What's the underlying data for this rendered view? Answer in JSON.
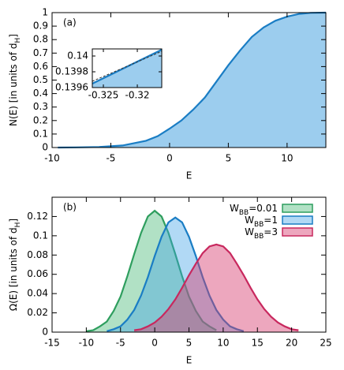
{
  "chart_data": [
    {
      "type": "area",
      "annotation": "(a)",
      "xlabel": "E",
      "ylabel": [
        "N(E) [in units of d",
        "H",
        "]"
      ],
      "xlim": [
        -10,
        13.3
      ],
      "xticks": [
        -10,
        -5,
        0,
        5,
        10
      ],
      "ylim": [
        0,
        1
      ],
      "yticks": [
        0,
        0.1,
        0.2,
        0.3,
        0.4,
        0.5,
        0.6,
        0.7,
        0.8,
        0.9,
        1
      ],
      "series": [
        {
          "color": "#1a7dc4",
          "fill": "#9ccdee",
          "x": [
            -9.5,
            -8,
            -6,
            -4,
            -2,
            -1,
            0,
            1,
            2,
            3,
            4,
            5,
            6,
            7,
            8,
            9,
            10,
            11,
            12,
            13.3
          ],
          "values": [
            0,
            0.001,
            0.004,
            0.015,
            0.05,
            0.085,
            0.14,
            0.2,
            0.28,
            0.37,
            0.49,
            0.61,
            0.72,
            0.82,
            0.89,
            0.94,
            0.97,
            0.99,
            0.998,
            1
          ]
        }
      ]
    },
    {
      "type": "area",
      "xlim": [
        -0.32663,
        -0.3164
      ],
      "xticks": [
        -0.325,
        -0.32
      ],
      "ylim": [
        0.1396,
        0.14009
      ],
      "yticks": [
        0.1396,
        0.1398,
        0.14
      ],
      "series": [
        {
          "color": "#1a7dc4",
          "fill": "#9ccdee",
          "x": [
            -0.32663,
            -0.3164
          ],
          "values": [
            0.13965,
            0.14008
          ]
        },
        {
          "color": "#333333",
          "dashed": true,
          "x": [
            -0.32663,
            -0.3164
          ],
          "values": [
            0.13968,
            0.14006
          ]
        }
      ]
    },
    {
      "type": "area",
      "annotation": "(b)",
      "xlabel": "E",
      "ylabel": [
        "Ω(E) [in units of d",
        "H",
        "]"
      ],
      "xlim": [
        -15,
        25
      ],
      "xticks": [
        -15,
        -10,
        -5,
        0,
        5,
        10,
        15,
        20,
        25
      ],
      "ylim": [
        0,
        0.14
      ],
      "yticks": [
        0,
        0.02,
        0.04,
        0.06,
        0.08,
        0.1,
        0.12
      ],
      "series": [
        {
          "name": [
            "W",
            "BB",
            "=0.01"
          ],
          "color": "#2e9e5e",
          "fill": "rgba(60,180,110,0.4)",
          "x": [
            -10,
            -9,
            -8,
            -7,
            -6,
            -5,
            -4,
            -3,
            -2,
            -1,
            0,
            1,
            2,
            3,
            4,
            5,
            6,
            7,
            8,
            9
          ],
          "values": [
            0.001,
            0.002,
            0.006,
            0.011,
            0.022,
            0.037,
            0.058,
            0.081,
            0.103,
            0.12,
            0.126,
            0.12,
            0.103,
            0.081,
            0.058,
            0.037,
            0.022,
            0.011,
            0.006,
            0.002
          ]
        },
        {
          "name": [
            "W",
            "BB",
            "=1"
          ],
          "color": "#1a7dc4",
          "fill": "rgba(60,160,230,0.4)",
          "x": [
            -7,
            -6,
            -5,
            -4,
            -3,
            -2,
            -1,
            0,
            1,
            2,
            3,
            4,
            5,
            6,
            7,
            8,
            9,
            10,
            11,
            12,
            13
          ],
          "values": [
            0.001,
            0.003,
            0.006,
            0.013,
            0.023,
            0.038,
            0.057,
            0.079,
            0.099,
            0.114,
            0.119,
            0.114,
            0.099,
            0.079,
            0.057,
            0.038,
            0.023,
            0.013,
            0.006,
            0.003,
            0.001
          ]
        },
        {
          "name": [
            "W",
            "BB",
            "=3"
          ],
          "color": "#c8285e",
          "fill": "rgba(215,60,110,0.45)",
          "x": [
            -3,
            -2,
            -1,
            0,
            1,
            2,
            3,
            4,
            5,
            6,
            7,
            8,
            9,
            10,
            11,
            12,
            13,
            14,
            15,
            16,
            17,
            18,
            19,
            20,
            21
          ],
          "values": [
            0.002,
            0.003,
            0.006,
            0.01,
            0.016,
            0.024,
            0.034,
            0.046,
            0.059,
            0.071,
            0.082,
            0.089,
            0.091,
            0.089,
            0.082,
            0.071,
            0.059,
            0.046,
            0.034,
            0.024,
            0.016,
            0.01,
            0.006,
            0.003,
            0.002
          ]
        }
      ]
    }
  ]
}
